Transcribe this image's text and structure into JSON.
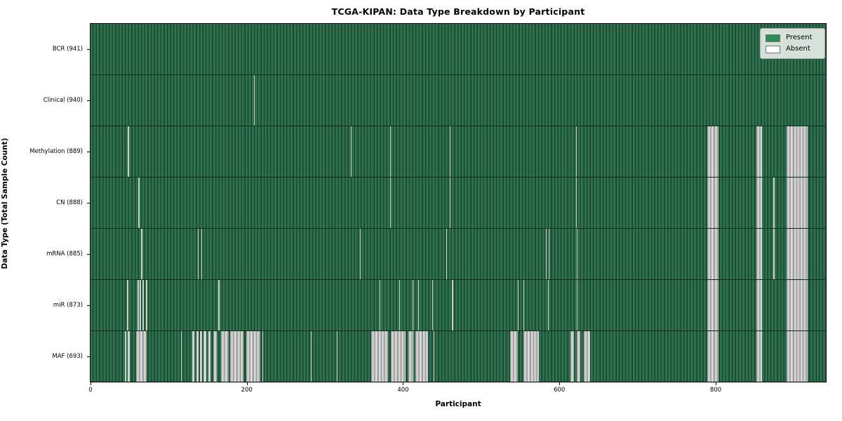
{
  "title": "TCGA-KIPAN: Data Type Breakdown by Participant",
  "x_axis_title": "Participant",
  "y_axis_title": "Data Type (Total Sample Count)",
  "legend": {
    "items": [
      {
        "label": "Present",
        "color": "#2e8b57"
      },
      {
        "label": "Absent",
        "color": "#ffffff"
      }
    ]
  },
  "colors": {
    "present": "#2e8b57",
    "absent": "#ffffff",
    "row_texture_dark": "#1a432c",
    "absent_block_gray": "#c2c2c2"
  },
  "chart_data": {
    "type": "heatmap",
    "title": "TCGA-KIPAN: Data Type Breakdown by Participant",
    "xlabel": "Participant",
    "ylabel": "Data Type (Total Sample Count)",
    "legend_entries": [
      "Present",
      "Absent"
    ],
    "n_participants": 941,
    "xlim": [
      0,
      941
    ],
    "x_ticks": [
      0,
      200,
      400,
      600,
      800
    ],
    "grid": false,
    "legend_position": "upper right",
    "rows": [
      {
        "data_type": "BCR",
        "label": "BCR (941)",
        "present_count": 941,
        "absent_ranges": []
      },
      {
        "data_type": "Clinical",
        "label": "Clinical (940)",
        "present_count": 940,
        "absent_ranges": [
          [
            209,
            210
          ]
        ]
      },
      {
        "data_type": "Methylation",
        "label": "Methylation (889)",
        "present_count": 889,
        "absent_ranges": [
          [
            48,
            49
          ],
          [
            333,
            334
          ],
          [
            383,
            384
          ],
          [
            460,
            461
          ],
          [
            621,
            622
          ],
          [
            789,
            804
          ],
          [
            852,
            859
          ],
          [
            891,
            918
          ]
        ]
      },
      {
        "data_type": "CN",
        "label": "CN (888)",
        "present_count": 888,
        "absent_ranges": [
          [
            61,
            63
          ],
          [
            383,
            384
          ],
          [
            460,
            461
          ],
          [
            621,
            622
          ],
          [
            789,
            804
          ],
          [
            852,
            859
          ],
          [
            874,
            875
          ],
          [
            891,
            918
          ]
        ]
      },
      {
        "data_type": "mRNA",
        "label": "mRNA (885)",
        "present_count": 885,
        "absent_ranges": [
          [
            65,
            66
          ],
          [
            137,
            138
          ],
          [
            142,
            143
          ],
          [
            345,
            346
          ],
          [
            455,
            456
          ],
          [
            583,
            584
          ],
          [
            586,
            587
          ],
          [
            622,
            623
          ],
          [
            789,
            804
          ],
          [
            852,
            859
          ],
          [
            874,
            875
          ],
          [
            891,
            918
          ]
        ]
      },
      {
        "data_type": "miR",
        "label": "miR (873)",
        "present_count": 873,
        "absent_ranges": [
          [
            47,
            48
          ],
          [
            60,
            62
          ],
          [
            63,
            65
          ],
          [
            66,
            68
          ],
          [
            71,
            73
          ],
          [
            163,
            165
          ],
          [
            370,
            371
          ],
          [
            395,
            396
          ],
          [
            412,
            413
          ],
          [
            419,
            420
          ],
          [
            437,
            438
          ],
          [
            462,
            464
          ],
          [
            547,
            548
          ],
          [
            554,
            555
          ],
          [
            585,
            586
          ],
          [
            622,
            623
          ],
          [
            789,
            804
          ],
          [
            852,
            859
          ],
          [
            891,
            918
          ]
        ]
      },
      {
        "data_type": "MAF",
        "label": "MAF (693)",
        "present_count": 693,
        "absent_ranges": [
          [
            44,
            46
          ],
          [
            48,
            50
          ],
          [
            58,
            72
          ],
          [
            116,
            117
          ],
          [
            130,
            133
          ],
          [
            136,
            138
          ],
          [
            140,
            143
          ],
          [
            145,
            148
          ],
          [
            151,
            154
          ],
          [
            157,
            162
          ],
          [
            167,
            177
          ],
          [
            179,
            196
          ],
          [
            199,
            217
          ],
          [
            220,
            221
          ],
          [
            282,
            283
          ],
          [
            315,
            316
          ],
          [
            359,
            381
          ],
          [
            384,
            403
          ],
          [
            407,
            413
          ],
          [
            416,
            432
          ],
          [
            439,
            440
          ],
          [
            537,
            547
          ],
          [
            554,
            574
          ],
          [
            614,
            619
          ],
          [
            622,
            627
          ],
          [
            631,
            639
          ],
          [
            789,
            804
          ],
          [
            852,
            859
          ],
          [
            891,
            918
          ]
        ]
      }
    ]
  }
}
